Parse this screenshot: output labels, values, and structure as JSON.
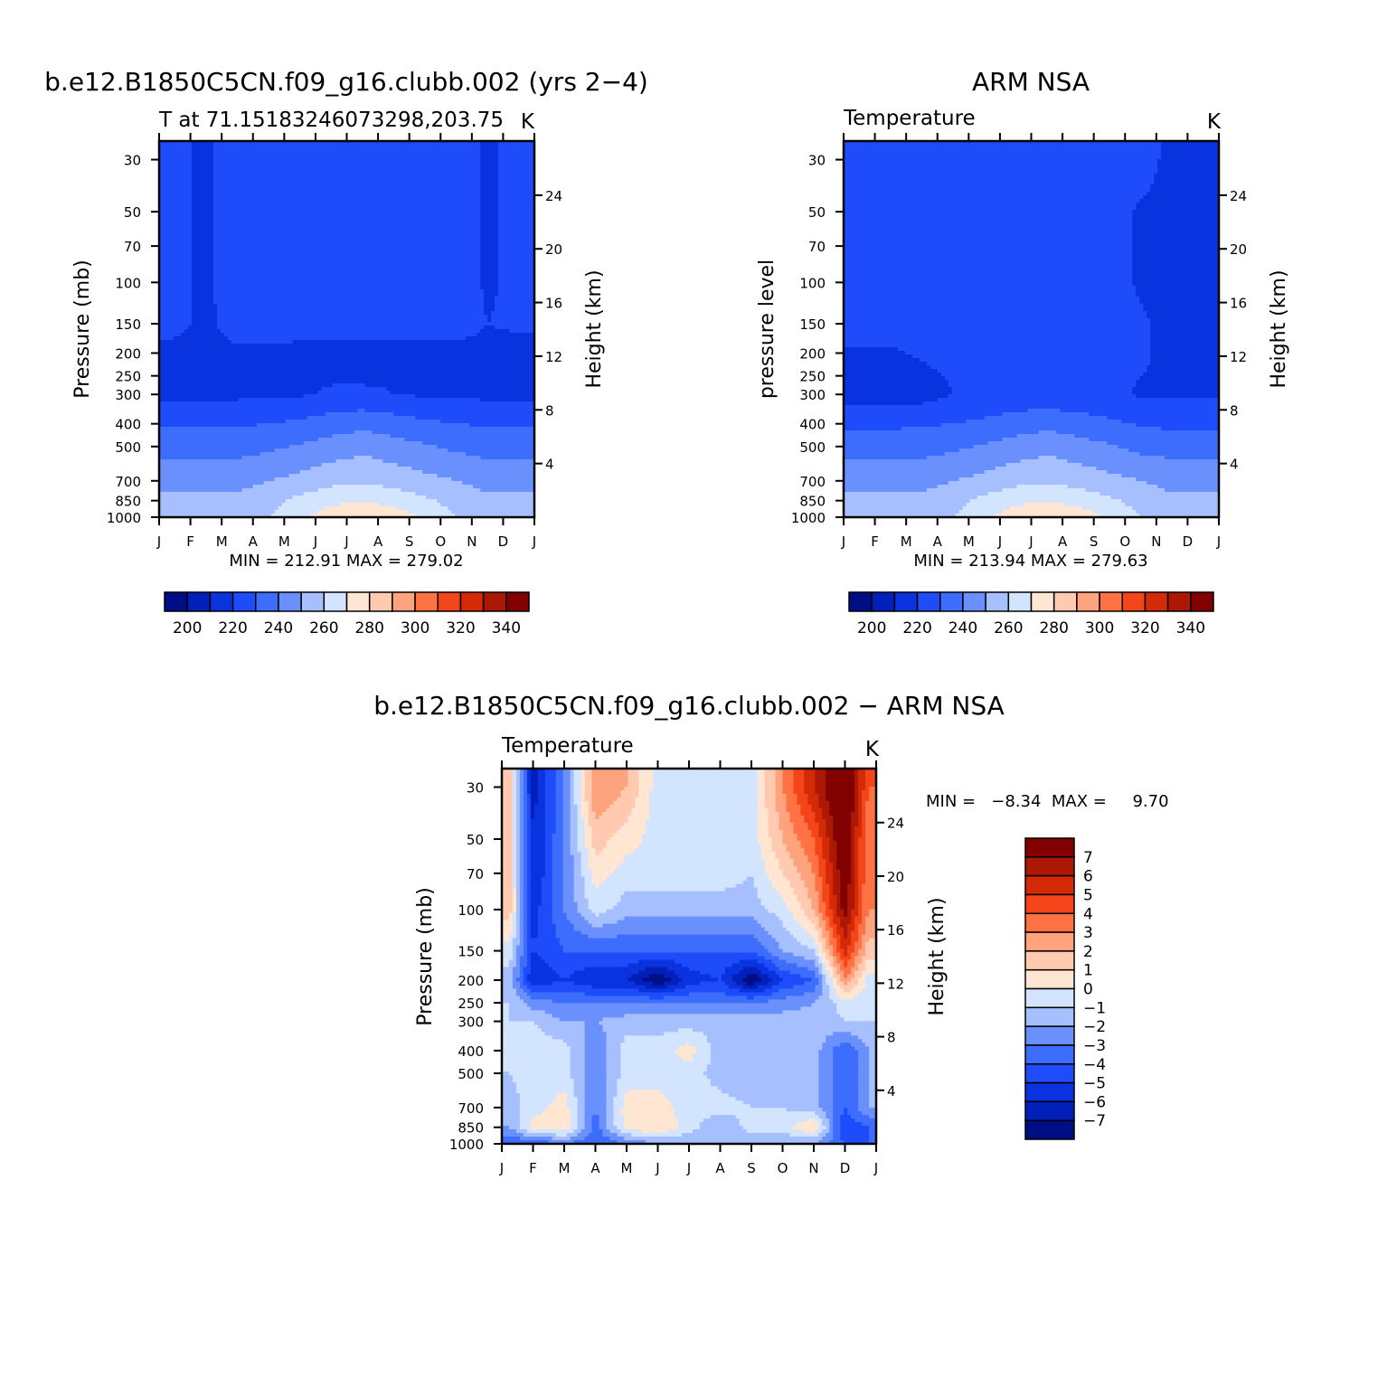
{
  "palette": {
    "temperature": [
      "#000e85",
      "#0020b9",
      "#0a33e0",
      "#1e4cfa",
      "#3d6dfc",
      "#6a90fd",
      "#a6bffe",
      "#d3e4fe",
      "#ffe6d3",
      "#ffcab0",
      "#ffa27e",
      "#ff7244",
      "#f4441a",
      "#d42a08",
      "#ac1804",
      "#820000"
    ],
    "difference": [
      "#000e85",
      "#0020b9",
      "#0a33e0",
      "#1e4cfa",
      "#3d6dfc",
      "#6a90fd",
      "#a6bffe",
      "#d3e4fe",
      "#ffe6d3",
      "#ffcab0",
      "#ffa27e",
      "#ff7244",
      "#f4441a",
      "#d42a08",
      "#ac1804",
      "#820000"
    ]
  },
  "chart_data": [
    {
      "type": "heatmap",
      "title": "b.e12.B1850C5CN.f09_g16.clubb.002 (yrs 2−4)",
      "subtitle": "T at 71.15183246073298,203.75",
      "units": "K",
      "ylabel": "Pressure (mb)",
      "y2label": "Height (km)",
      "stats": "MIN = 212.91 MAX = 279.02",
      "x_ticks": [
        "J",
        "F",
        "M",
        "A",
        "M",
        "J",
        "J",
        "A",
        "S",
        "O",
        "N",
        "D",
        "J"
      ],
      "y_ticks": [
        "30",
        "50",
        "70",
        "100",
        "150",
        "200",
        "250",
        "300",
        "400",
        "500",
        "700",
        "850",
        "1000"
      ],
      "y_tick_values": [
        30,
        50,
        70,
        100,
        150,
        200,
        250,
        300,
        400,
        500,
        700,
        850,
        1000
      ],
      "y2_ticks": [
        "24",
        "20",
        "16",
        "12",
        "8",
        "4"
      ],
      "y2_tick_values": [
        24,
        20,
        16,
        12,
        8,
        4
      ],
      "ylim": [
        25,
        1000
      ],
      "min": 212.91,
      "max": 279.02,
      "colorbar_labels": [
        "200",
        "220",
        "240",
        "260",
        "280",
        "300",
        "320",
        "340"
      ],
      "colorbar_levels": [
        190,
        195,
        200,
        205,
        210,
        215,
        220,
        225,
        230,
        235,
        240,
        245,
        250,
        255,
        260,
        265,
        270,
        275,
        280,
        285,
        290,
        295,
        300,
        305,
        310,
        315,
        320,
        325,
        330,
        335,
        340,
        345,
        350
      ],
      "months": [
        0.5,
        1.5,
        2.5,
        3.5,
        4.5,
        5.5,
        6.5,
        7.5,
        8.5,
        9.5,
        10.5,
        11.5
      ],
      "levels": [
        25,
        30,
        50,
        70,
        100,
        150,
        200,
        250,
        300,
        400,
        500,
        700,
        850,
        1000
      ],
      "values": [
        [
          221,
          219,
          223,
          224,
          225,
          226,
          227,
          226,
          225,
          224,
          219,
          222
        ],
        [
          221,
          219,
          223,
          224,
          225,
          226,
          227,
          226,
          225,
          224,
          219,
          222
        ],
        [
          221,
          219,
          223,
          224,
          225,
          226,
          226,
          226,
          225,
          224,
          219,
          222
        ],
        [
          221,
          219,
          223,
          224,
          224,
          224,
          224,
          224,
          224,
          224,
          219,
          222
        ],
        [
          221,
          219,
          223,
          224,
          224,
          224,
          224,
          224,
          224,
          224,
          219,
          222
        ],
        [
          221,
          219,
          222,
          223,
          223,
          223,
          223,
          223,
          223,
          223,
          220,
          221
        ],
        [
          219,
          219,
          219,
          218.5,
          218,
          218,
          218,
          218,
          218,
          218,
          218,
          218
        ],
        [
          219,
          219,
          219,
          219,
          219,
          219,
          218,
          219,
          219,
          219,
          219,
          219
        ],
        [
          218,
          218,
          218,
          218.5,
          219,
          221,
          222,
          220,
          219,
          218,
          218,
          218
        ],
        [
          229,
          229,
          229,
          230,
          232,
          235,
          237,
          235,
          232,
          230,
          229,
          229
        ],
        [
          236,
          236,
          236,
          238,
          241,
          244,
          247,
          244,
          241,
          238,
          236,
          236
        ],
        [
          247,
          247,
          247,
          250,
          253,
          257,
          259,
          256,
          253,
          250,
          247,
          247
        ],
        [
          252,
          252,
          252,
          256,
          263,
          267,
          269,
          266,
          262,
          256,
          252,
          252
        ],
        [
          254,
          254,
          256,
          260,
          267,
          277,
          279,
          277,
          268,
          260,
          255,
          254
        ]
      ]
    },
    {
      "type": "heatmap",
      "title": "ARM NSA",
      "subtitle": "Temperature",
      "units": "K",
      "ylabel": "pressure level",
      "y2label": "Height (km)",
      "stats": "MIN = 213.94 MAX = 279.63",
      "x_ticks": [
        "J",
        "F",
        "M",
        "A",
        "M",
        "J",
        "J",
        "A",
        "S",
        "O",
        "N",
        "D",
        "J"
      ],
      "y_ticks": [
        "30",
        "50",
        "70",
        "100",
        "150",
        "200",
        "250",
        "300",
        "400",
        "500",
        "700",
        "850",
        "1000"
      ],
      "y_tick_values": [
        30,
        50,
        70,
        100,
        150,
        200,
        250,
        300,
        400,
        500,
        700,
        850,
        1000
      ],
      "y2_ticks": [
        "24",
        "20",
        "16",
        "12",
        "8",
        "4"
      ],
      "y2_tick_values": [
        24,
        20,
        16,
        12,
        8,
        4
      ],
      "ylim": [
        25,
        1000
      ],
      "min": 213.94,
      "max": 279.63,
      "colorbar_labels": [
        "200",
        "220",
        "240",
        "260",
        "280",
        "300",
        "320",
        "340"
      ],
      "colorbar_levels": [
        190,
        195,
        200,
        205,
        210,
        215,
        220,
        225,
        230,
        235,
        240,
        245,
        250,
        255,
        260,
        265,
        270,
        275,
        280,
        285,
        290,
        295,
        300,
        305,
        310,
        315,
        320,
        325,
        330,
        335,
        340,
        345,
        350
      ],
      "months": [
        0.5,
        1.5,
        2.5,
        3.5,
        4.5,
        5.5,
        6.5,
        7.5,
        8.5,
        9.5,
        10.5,
        11.5
      ],
      "levels": [
        25,
        30,
        50,
        70,
        100,
        150,
        200,
        250,
        300,
        400,
        500,
        700,
        850,
        1000
      ],
      "values": [
        [
          223,
          223,
          223,
          223,
          224,
          225,
          226,
          225,
          224,
          223,
          218,
          219
        ],
        [
          223,
          223,
          223,
          223,
          224,
          224,
          224,
          224,
          224,
          223,
          218,
          219
        ],
        [
          223,
          223,
          223,
          223,
          223,
          223,
          223,
          223,
          223,
          219,
          218,
          219
        ],
        [
          223,
          223,
          223,
          223,
          223,
          223,
          223,
          223,
          223,
          219,
          218,
          219
        ],
        [
          223,
          223,
          223,
          223,
          223,
          223,
          223,
          223,
          223,
          219,
          218,
          218
        ],
        [
          223,
          223,
          223,
          223,
          223,
          223,
          223,
          223,
          223,
          221,
          218,
          218
        ],
        [
          219,
          219,
          221,
          223,
          223,
          223,
          223,
          223,
          223,
          221,
          218,
          218
        ],
        [
          216,
          216,
          218,
          221,
          222,
          222,
          223,
          222,
          222,
          220,
          219,
          219
        ],
        [
          215,
          215,
          216,
          220,
          222,
          223,
          223,
          222,
          222,
          219,
          219,
          219
        ],
        [
          228,
          228,
          229,
          230,
          232,
          235,
          237,
          235,
          232,
          229,
          228,
          228
        ],
        [
          236,
          236,
          236,
          238,
          241,
          244,
          247,
          244,
          241,
          237,
          236,
          236
        ],
        [
          247,
          247,
          247,
          250,
          253,
          257,
          259,
          256,
          253,
          250,
          247,
          247
        ],
        [
          252,
          252,
          252,
          256,
          263,
          267,
          269,
          266,
          262,
          256,
          252,
          252
        ],
        [
          254,
          254,
          256,
          260,
          267,
          277,
          280,
          277,
          268,
          260,
          255,
          254
        ]
      ]
    },
    {
      "type": "heatmap",
      "title": "b.e12.B1850C5CN.f09_g16.clubb.002 − ARM NSA",
      "subtitle": "Temperature",
      "units": "K",
      "ylabel": "Pressure (mb)",
      "y2label": "Height (km)",
      "stats": "MIN =   −8.34  MAX =     9.70",
      "x_ticks": [
        "J",
        "F",
        "M",
        "A",
        "M",
        "J",
        "J",
        "A",
        "S",
        "O",
        "N",
        "D",
        "J"
      ],
      "y_ticks": [
        "30",
        "50",
        "70",
        "100",
        "150",
        "200",
        "250",
        "300",
        "400",
        "500",
        "700",
        "850",
        "1000"
      ],
      "y_tick_values": [
        30,
        50,
        70,
        100,
        150,
        200,
        250,
        300,
        400,
        500,
        700,
        850,
        1000
      ],
      "y2_ticks": [
        "24",
        "20",
        "16",
        "12",
        "8",
        "4"
      ],
      "y2_tick_values": [
        24,
        20,
        16,
        12,
        8,
        4
      ],
      "ylim": [
        25,
        1000
      ],
      "min": -8.34,
      "max": 9.7,
      "colorbar_labels": [
        "7",
        "6",
        "5",
        "4",
        "3",
        "2",
        "1",
        "0",
        "−1",
        "−2",
        "−3",
        "−4",
        "−5",
        "−6",
        "−7"
      ],
      "colorbar_levels": [
        -8,
        -7,
        -6,
        -5,
        -4,
        -3,
        -2,
        -1,
        0,
        1,
        2,
        3,
        4,
        5,
        6,
        7,
        8
      ],
      "months": [
        0.25,
        1,
        2,
        3,
        4,
        5,
        6,
        7,
        8,
        9,
        10,
        11,
        11.75
      ],
      "levels": [
        25,
        30,
        50,
        70,
        100,
        150,
        200,
        250,
        300,
        400,
        500,
        700,
        850,
        1000
      ],
      "values": [
        [
          1.5,
          -6.5,
          -3,
          3,
          2,
          -0.5,
          -0.5,
          -0.5,
          -0.5,
          3,
          6,
          9,
          4
        ],
        [
          1.5,
          -6.5,
          -3,
          3,
          2,
          -0.5,
          -0.5,
          -0.5,
          -0.5,
          3,
          6,
          9,
          4
        ],
        [
          1.5,
          -6,
          -3,
          1.5,
          0.5,
          -0.5,
          -0.5,
          -0.5,
          -0.5,
          2,
          4,
          8.5,
          3
        ],
        [
          1.5,
          -6,
          -3,
          0.5,
          -0.5,
          -0.5,
          -0.5,
          -0.5,
          -1,
          1,
          3,
          8,
          3
        ],
        [
          1.5,
          -5.5,
          -3,
          -0.5,
          -1.5,
          -1.5,
          -1.5,
          -1.5,
          -1.5,
          -0.5,
          2,
          7.5,
          3
        ],
        [
          -0.5,
          -5,
          -4,
          -4,
          -4,
          -4,
          -4,
          -4,
          -4,
          -2,
          -1,
          5.5,
          1.5
        ],
        [
          -1.5,
          -6,
          -5,
          -6,
          -6,
          -8,
          -5.5,
          -5,
          -8,
          -5,
          -4,
          3,
          -0.5
        ],
        [
          -1,
          -2.5,
          -3,
          -3,
          -3,
          -3,
          -3,
          -3,
          -3,
          -2.5,
          -2,
          -0.5,
          -0.5
        ],
        [
          -1,
          -1,
          -2,
          -2,
          -1.5,
          -1.5,
          -1.5,
          -1.5,
          -1.5,
          -1.5,
          -1.5,
          -1,
          -1
        ],
        [
          -1,
          -0.5,
          -0.5,
          -3,
          -0.5,
          -0.5,
          0.5,
          -1.5,
          -2,
          -2,
          -1.5,
          -4,
          -2
        ],
        [
          -1,
          -0.5,
          -0.5,
          -3,
          -0.5,
          -0.5,
          -0.5,
          -1.5,
          -2,
          -2,
          -1.5,
          -4,
          -2
        ],
        [
          -1.5,
          -0.5,
          0.5,
          -3,
          0.5,
          0.5,
          -0.5,
          -0.5,
          -1,
          -1,
          -1.5,
          -4,
          -2
        ],
        [
          -2,
          0.5,
          1,
          -3.5,
          0.5,
          1,
          -0.5,
          -2,
          -0.5,
          -0.5,
          1,
          -5,
          -4
        ],
        [
          -4,
          -4,
          -3,
          -4,
          -3,
          -2,
          -2,
          -2,
          -2,
          -2,
          -2,
          -4,
          -4
        ]
      ]
    }
  ]
}
